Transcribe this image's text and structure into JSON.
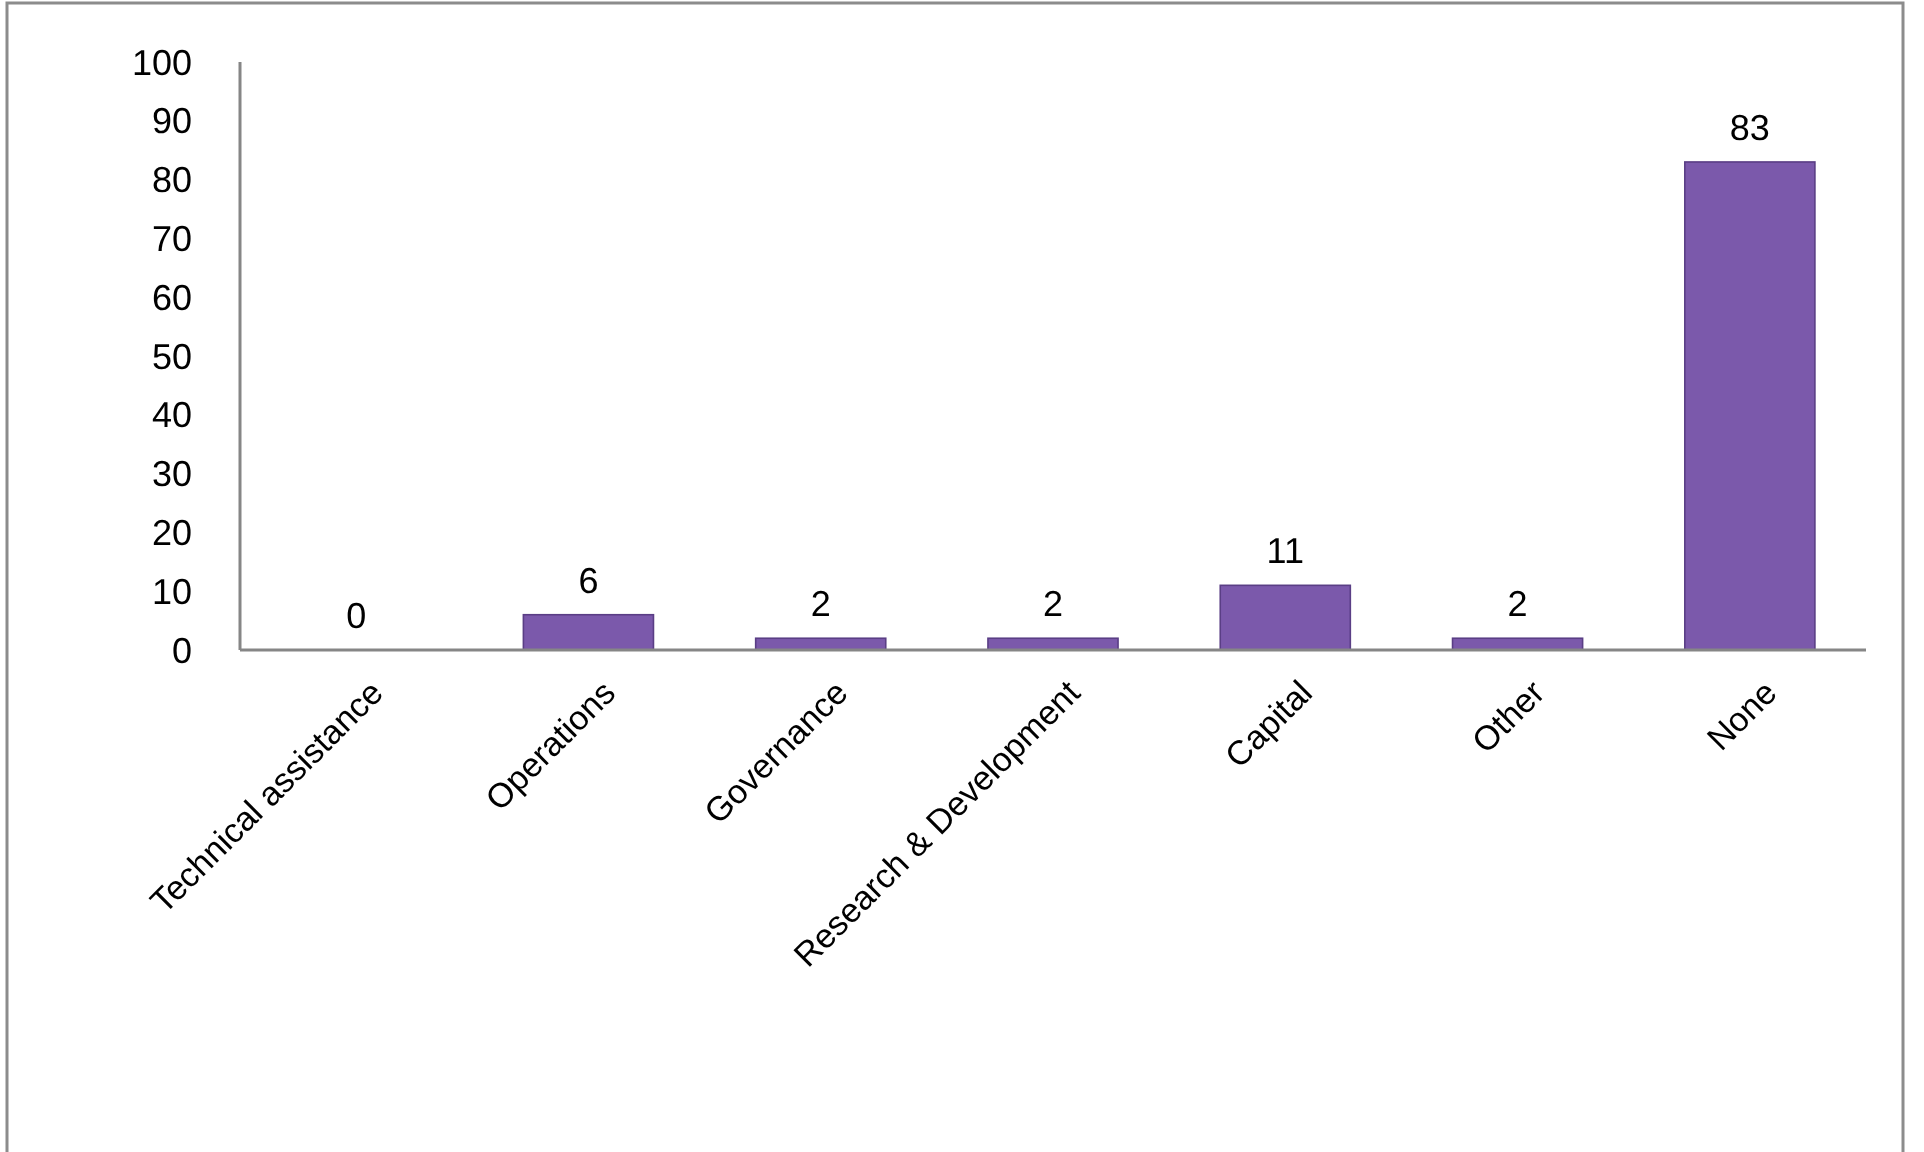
{
  "chart_data": {
    "type": "bar",
    "categories": [
      "Technical assistance",
      "Operations",
      "Governance",
      "Research & Development",
      "Capital",
      "Other",
      "None"
    ],
    "values": [
      0,
      6,
      2,
      2,
      11,
      2,
      83
    ],
    "color": "#7b59ab",
    "ylim": [
      0,
      100
    ],
    "yticks": [
      0,
      10,
      20,
      30,
      40,
      50,
      60,
      70,
      80,
      90,
      100
    ],
    "data_labels": true
  }
}
